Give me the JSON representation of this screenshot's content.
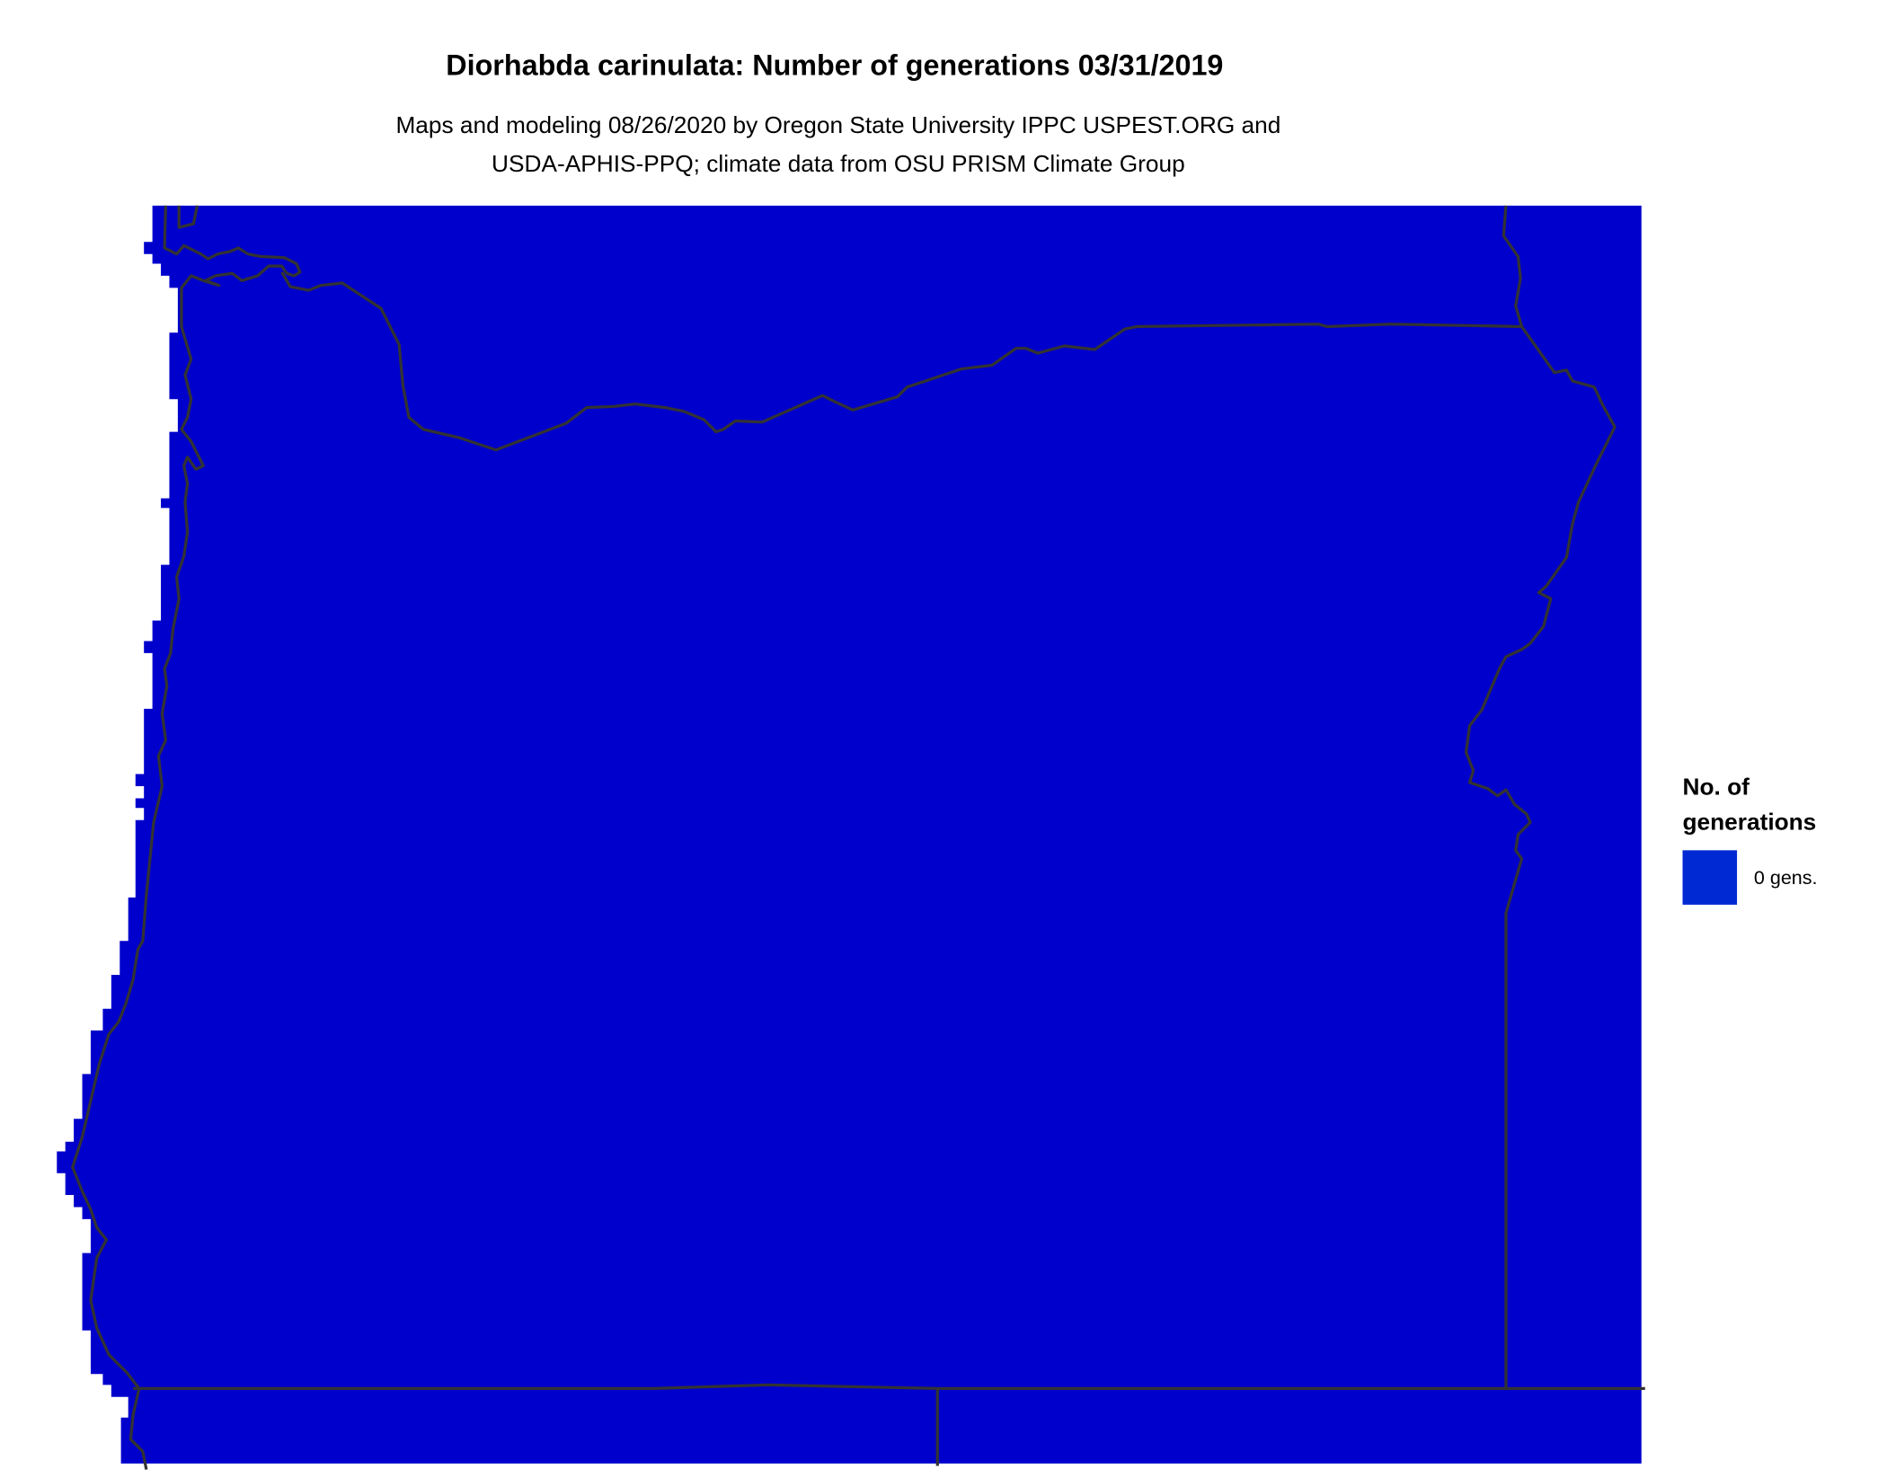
{
  "title": "Diorhabda carinulata: Number of generations 03/31/2019",
  "subtitle_line1": "Maps and modeling 08/26/2020 by Oregon State University IPPC USPEST.ORG and",
  "subtitle_line2": "USDA-APHIS-PPQ; climate data from OSU PRISM Climate Group",
  "legend": {
    "title_line1": "No. of",
    "title_line2": "generations",
    "items": [
      {
        "label": "0 gens.",
        "color": "#0029D4"
      }
    ]
  },
  "colors": {
    "map_fill": "#0000CC",
    "borders": "#333333"
  }
}
